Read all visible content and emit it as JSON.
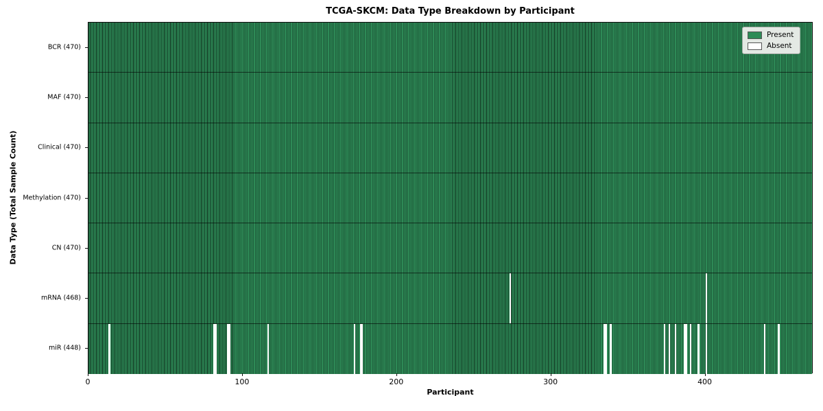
{
  "title": "TCGA-SKCM: Data Type Breakdown by Participant",
  "chart_data": {
    "type": "heatmap",
    "title": "TCGA-SKCM: Data Type Breakdown by Participant",
    "xlabel": "Participant",
    "ylabel": "Data Type (Total Sample Count)",
    "n_participants": 470,
    "x_ticks": [
      0,
      100,
      200,
      300,
      400
    ],
    "grid": false,
    "legend_position": "upper right",
    "colors": {
      "present": "#2E8B57",
      "absent": "#FFFFFF",
      "edge": "#0f2d1c"
    },
    "legend": [
      {
        "label": "Present",
        "color": "#2E8B57"
      },
      {
        "label": "Absent",
        "color": "#FFFFFF"
      }
    ],
    "rows": [
      {
        "label": "BCR (470)",
        "data_type": "BCR",
        "present_count": 470,
        "absent_participants": []
      },
      {
        "label": "MAF (470)",
        "data_type": "MAF",
        "present_count": 470,
        "absent_participants": []
      },
      {
        "label": "Clinical (470)",
        "data_type": "Clinical",
        "present_count": 470,
        "absent_participants": []
      },
      {
        "label": "Methylation (470)",
        "data_type": "Methylation",
        "present_count": 470,
        "absent_participants": []
      },
      {
        "label": "CN (470)",
        "data_type": "CN",
        "present_count": 470,
        "absent_participants": []
      },
      {
        "label": "mRNA (468)",
        "data_type": "mRNA",
        "present_count": 468,
        "absent_participants": [
          273,
          400
        ]
      },
      {
        "label": "miR (448)",
        "data_type": "miR",
        "present_count": 448,
        "absent_participants": [
          13,
          81,
          82,
          90,
          91,
          116,
          172,
          176,
          177,
          334,
          335,
          338,
          373,
          376,
          380,
          386,
          387,
          390,
          395,
          400,
          438,
          447
        ]
      }
    ]
  }
}
